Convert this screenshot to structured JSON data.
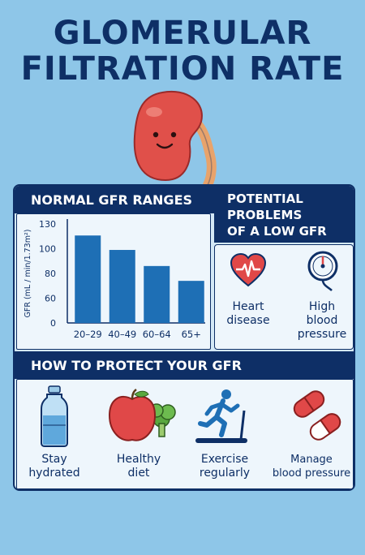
{
  "title": {
    "line1": "GLOMERULAR",
    "line2": "FILTRATION RATE"
  },
  "sections": {
    "ranges_heading": "NORMAL GFR RANGES",
    "problems_heading_1": "POTENTIAL",
    "problems_heading_2": "PROBLEMS",
    "problems_heading_3": "OF A LOW GFR",
    "protect_heading": "HOW TO PROTECT YOUR GFR"
  },
  "problems": [
    {
      "label_1": "Heart",
      "label_2": "disease",
      "label_3": "",
      "icon": "heart-icon"
    },
    {
      "label_1": "High",
      "label_2": "blood",
      "label_3": "pressure",
      "icon": "gauge-icon"
    }
  ],
  "protect": [
    {
      "label_1": "Stay",
      "label_2": "hydrated",
      "icon": "water-bottle-icon"
    },
    {
      "label_1": "Healthy",
      "label_2": "diet",
      "icon": "apple-broccoli-icon"
    },
    {
      "label_1": "Exercise",
      "label_2": "regularly",
      "icon": "treadmill-runner-icon"
    },
    {
      "label_1": "Manage",
      "label_2": "blood pressure",
      "icon": "pills-icon"
    }
  ],
  "colors": {
    "background": "#8ec6e8",
    "navy": "#0e2f66",
    "bar": "#1e6fb5",
    "kidney": "#e0504a",
    "heart": "#e04848"
  },
  "chart_data": {
    "type": "bar",
    "categories": [
      "20–29",
      "40–49",
      "60–64",
      "65+"
    ],
    "values": [
      116,
      99,
      86,
      74
    ],
    "ylabel": "GFR (mL / min/1.73m²)",
    "ylim": [
      0,
      130
    ],
    "yticks": [
      0,
      60,
      80,
      100,
      130
    ],
    "grid": false
  }
}
